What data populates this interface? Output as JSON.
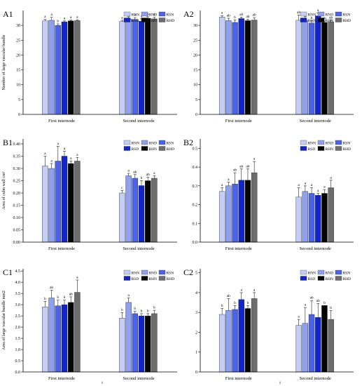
{
  "figure": {
    "series_names": [
      "RNN",
      "RND",
      "RSN",
      "RSD",
      "RHN",
      "RHD"
    ],
    "series_colors": [
      "#c4cdf6",
      "#8fa0ee",
      "#4b63e8",
      "#1226c8",
      "#050505",
      "#6d6d6d"
    ],
    "categories": [
      "First internode",
      "Second internode"
    ],
    "footer_marks": [
      "8",
      "8"
    ]
  },
  "chart_data": [
    {
      "type": "bar",
      "panel_label": "A1",
      "ylabel": "Number of large vascular bundle",
      "ylim": [
        0,
        35
      ],
      "yticks": [
        0,
        5,
        10,
        15,
        20,
        25,
        30
      ],
      "categories": [
        "First internode",
        "Second internode"
      ],
      "series": [
        {
          "name": "RNN",
          "values": [
            31.5,
            31.3
          ],
          "errors": [
            0.5,
            0.4
          ],
          "letters": [
            "a",
            "a"
          ]
        },
        {
          "name": "RND",
          "values": [
            31.7,
            32.2
          ],
          "errors": [
            1.0,
            0.7
          ],
          "letters": [
            "a",
            "a"
          ]
        },
        {
          "name": "RSN",
          "values": [
            30.0,
            32.0
          ],
          "errors": [
            0.5,
            0.6
          ],
          "letters": [
            "b",
            "a"
          ]
        },
        {
          "name": "RSD",
          "values": [
            31.2,
            31.4
          ],
          "errors": [
            0.3,
            0.8
          ],
          "letters": [
            "a",
            "a"
          ]
        },
        {
          "name": "RHN",
          "values": [
            31.5,
            32.4
          ],
          "errors": [
            0.3,
            0.5
          ],
          "letters": [
            "a",
            "a"
          ]
        },
        {
          "name": "RHD",
          "values": [
            31.6,
            32.2
          ],
          "errors": [
            0.3,
            0.5
          ],
          "letters": [
            "a",
            "a"
          ]
        }
      ]
    },
    {
      "type": "bar",
      "panel_label": "A2",
      "ylabel": "",
      "ylim": [
        0,
        35
      ],
      "yticks": [
        0,
        5,
        10,
        15,
        20,
        25,
        30
      ],
      "categories": [
        "First internode",
        "Second internode"
      ],
      "series": [
        {
          "name": "RNN",
          "values": [
            32.8,
            31.7
          ],
          "errors": [
            0.5,
            1.8
          ],
          "letters": [
            "a",
            "ab"
          ]
        },
        {
          "name": "RND",
          "values": [
            31.6,
            31.7
          ],
          "errors": [
            0.8,
            1.3
          ],
          "letters": [
            "ab",
            "ab"
          ]
        },
        {
          "name": "RSN",
          "values": [
            31.0,
            30.8
          ],
          "errors": [
            0.8,
            0.8
          ],
          "letters": [
            "b",
            "b"
          ]
        },
        {
          "name": "RSD",
          "values": [
            32.3,
            33.2
          ],
          "errors": [
            0.5,
            1.0
          ],
          "letters": [
            "ab",
            "a"
          ]
        },
        {
          "name": "RHN",
          "values": [
            31.6,
            31.0
          ],
          "errors": [
            0.5,
            0.5
          ],
          "letters": [
            "ab",
            "ab"
          ]
        },
        {
          "name": "RHD",
          "values": [
            31.8,
            31.2
          ],
          "errors": [
            0.8,
            0.5
          ],
          "letters": [
            "ab",
            "ab"
          ]
        }
      ]
    },
    {
      "type": "bar",
      "panel_label": "B1",
      "ylabel": "Area of culm wall cm²",
      "ylim": [
        0,
        0.42
      ],
      "yticks": [
        0.0,
        0.05,
        0.1,
        0.15,
        0.2,
        0.25,
        0.3,
        0.35,
        0.4
      ],
      "categories": [
        "First internode",
        "Second internode"
      ],
      "series": [
        {
          "name": "RNN",
          "values": [
            0.31,
            0.2
          ],
          "errors": [
            0.04,
            0.01
          ],
          "letters": [
            "a",
            "c"
          ]
        },
        {
          "name": "RND",
          "values": [
            0.3,
            0.27
          ],
          "errors": [
            0.02,
            0.01
          ],
          "letters": [
            "a",
            "a"
          ]
        },
        {
          "name": "RSN",
          "values": [
            0.33,
            0.26
          ],
          "errors": [
            0.06,
            0.015
          ],
          "letters": [
            "a",
            "ab"
          ]
        },
        {
          "name": "RSD",
          "values": [
            0.35,
            0.23
          ],
          "errors": [
            0.02,
            0.02
          ],
          "letters": [
            "a",
            "b"
          ]
        },
        {
          "name": "RHN",
          "values": [
            0.32,
            0.25
          ],
          "errors": [
            0.01,
            0.015
          ],
          "letters": [
            "a",
            "ab"
          ]
        },
        {
          "name": "RHD",
          "values": [
            0.33,
            0.26
          ],
          "errors": [
            0.015,
            0.01
          ],
          "letters": [
            "a",
            "a"
          ]
        }
      ]
    },
    {
      "type": "bar",
      "panel_label": "B2",
      "ylabel": "",
      "ylim": [
        0,
        0.55
      ],
      "yticks": [
        0.0,
        0.1,
        0.2,
        0.3,
        0.4,
        0.5
      ],
      "categories": [
        "First internode",
        "Second internode"
      ],
      "series": [
        {
          "name": "RNN",
          "values": [
            0.27,
            0.24
          ],
          "errors": [
            0.02,
            0.05
          ],
          "letters": [
            "a",
            "a"
          ]
        },
        {
          "name": "RND",
          "values": [
            0.3,
            0.27
          ],
          "errors": [
            0.02,
            0.03
          ],
          "letters": [
            "a",
            "a"
          ]
        },
        {
          "name": "RSN",
          "values": [
            0.31,
            0.26
          ],
          "errors": [
            0.06,
            0.03
          ],
          "letters": [
            "ab",
            "a"
          ]
        },
        {
          "name": "RSD",
          "values": [
            0.33,
            0.25
          ],
          "errors": [
            0.06,
            0.01
          ],
          "letters": [
            "ab",
            "a"
          ]
        },
        {
          "name": "RHN",
          "values": [
            0.33,
            0.26
          ],
          "errors": [
            0.06,
            0.02
          ],
          "letters": [
            "ab",
            "a"
          ]
        },
        {
          "name": "RHD",
          "values": [
            0.37,
            0.29
          ],
          "errors": [
            0.06,
            0.04
          ],
          "letters": [
            "a",
            "a"
          ]
        }
      ]
    },
    {
      "type": "bar",
      "panel_label": "C1",
      "ylabel": "Area of large vascular bundle mm2",
      "ylim": [
        0,
        4.6
      ],
      "yticks": [
        0.0,
        0.5,
        1.0,
        1.5,
        2.0,
        2.5,
        3.0,
        3.5,
        4.0,
        4.5
      ],
      "categories": [
        "First internode",
        "Second internode"
      ],
      "series": [
        {
          "name": "RNN",
          "values": [
            2.9,
            2.4
          ],
          "errors": [
            0.25,
            0.25
          ],
          "letters": [
            "b",
            "b"
          ]
        },
        {
          "name": "RND",
          "values": [
            3.3,
            3.1
          ],
          "errors": [
            0.35,
            0.2
          ],
          "letters": [
            "ab",
            "a"
          ]
        },
        {
          "name": "RSN",
          "values": [
            2.95,
            2.6
          ],
          "errors": [
            0.25,
            0.1
          ],
          "letters": [
            "b",
            "b"
          ]
        },
        {
          "name": "RSD",
          "values": [
            3.0,
            2.5
          ],
          "errors": [
            0.2,
            0.1
          ],
          "letters": [
            "b",
            "b"
          ]
        },
        {
          "name": "RHN",
          "values": [
            3.1,
            2.5
          ],
          "errors": [
            0.25,
            0.1
          ],
          "letters": [
            "ab",
            "b"
          ]
        },
        {
          "name": "RHD",
          "values": [
            3.55,
            2.6
          ],
          "errors": [
            0.55,
            0.15
          ],
          "letters": [
            "a",
            "b"
          ]
        }
      ]
    },
    {
      "type": "bar",
      "panel_label": "C2",
      "ylabel": "",
      "ylim": [
        0,
        5.2
      ],
      "yticks": [
        0,
        1,
        2,
        3,
        4,
        5
      ],
      "categories": [
        "First internode",
        "Second internode"
      ],
      "series": [
        {
          "name": "RNN",
          "values": [
            2.9,
            2.35
          ],
          "errors": [
            0.3,
            0.3
          ],
          "letters": [
            "b",
            "a"
          ]
        },
        {
          "name": "RND",
          "values": [
            3.1,
            2.45
          ],
          "errors": [
            0.6,
            0.8
          ],
          "letters": [
            "ab",
            "a"
          ]
        },
        {
          "name": "RSN",
          "values": [
            3.15,
            2.9
          ],
          "errors": [
            0.2,
            0.7
          ],
          "letters": [
            "b",
            "ab"
          ]
        },
        {
          "name": "RSD",
          "values": [
            3.65,
            2.75
          ],
          "errors": [
            0.35,
            0.7
          ],
          "letters": [
            "a",
            "ab"
          ]
        },
        {
          "name": "RHN",
          "values": [
            3.2,
            3.35
          ],
          "errors": [
            0.15,
            0.0
          ],
          "letters": [
            "b",
            "b"
          ]
        },
        {
          "name": "RHD",
          "values": [
            3.7,
            2.65
          ],
          "errors": [
            0.3,
            0.45
          ],
          "letters": [
            "a",
            "b"
          ]
        }
      ]
    }
  ]
}
